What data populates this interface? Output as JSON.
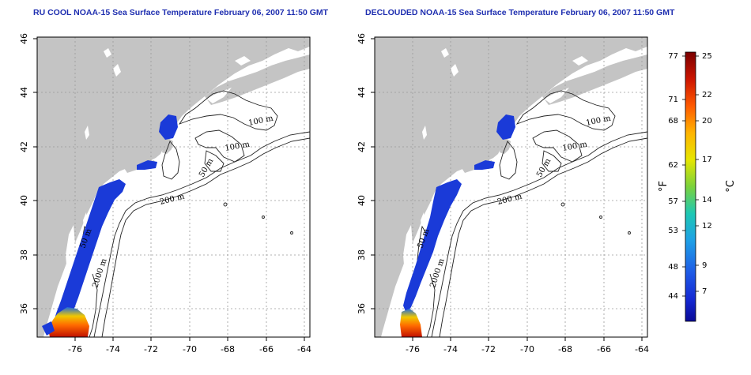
{
  "maps": [
    {
      "id": "left",
      "title": "RU COOL NOAA-15 Sea Surface Temperature February 06, 2007 11:50 GMT",
      "lon_ticks": [
        "-76",
        "-74",
        "-72",
        "-70",
        "-68",
        "-66",
        "-64"
      ],
      "lat_ticks": [
        "36",
        "38",
        "40",
        "42",
        "44",
        "46"
      ],
      "contour_labels": [
        "100 m",
        "100 m",
        "50 m",
        "200 m",
        "50 m",
        "2000 m"
      ]
    },
    {
      "id": "right",
      "title": "DECLOUDED NOAA-15 Sea Surface Temperature February 06, 2007 11:50 GMT",
      "lon_ticks": [
        "-76",
        "-74",
        "-72",
        "-70",
        "-68",
        "-66",
        "-64"
      ],
      "lat_ticks": [
        "36",
        "38",
        "40",
        "42",
        "44",
        "46"
      ],
      "contour_labels": [
        "100 m",
        "100 m",
        "50 m",
        "200 m",
        "50 m",
        "2000 m"
      ]
    }
  ],
  "colorbar": {
    "fahrenheit_label": "°F",
    "celsius_label": "°C",
    "fahrenheit_ticks": [
      "77",
      "71",
      "68",
      "62",
      "57",
      "53",
      "48",
      "44"
    ],
    "celsius_ticks": [
      "25",
      "22",
      "20",
      "17",
      "14",
      "12",
      "9",
      "7"
    ],
    "colors": [
      "#8b0000",
      "#d21a00",
      "#ff6a00",
      "#ffc800",
      "#d8e800",
      "#55d25a",
      "#19c2c8",
      "#1e7ae6",
      "#1440d8",
      "#0a10a8"
    ]
  },
  "colors": {
    "land": "#c4c4c4",
    "sst_warm": "#d8251c",
    "sst_cold": "#1838d8",
    "title": "#1f2fb0"
  }
}
